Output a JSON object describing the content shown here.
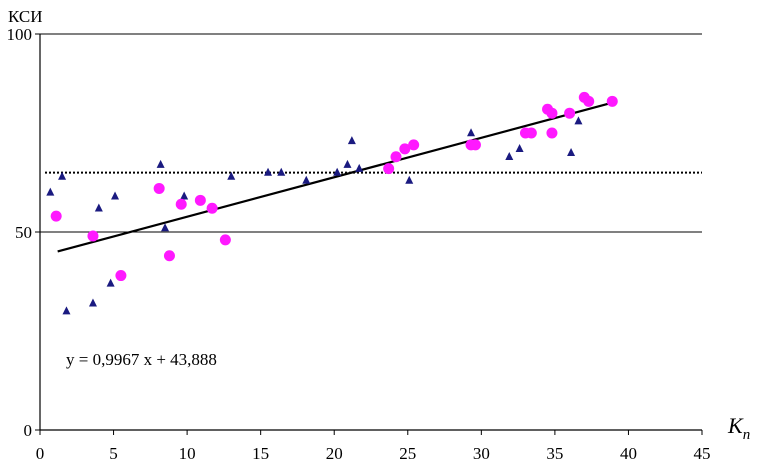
{
  "chart_data": {
    "type": "scatter",
    "title": "",
    "ylabel": "КСИ",
    "xlabel": "K",
    "xlabel_subscript": "n",
    "xlim": [
      0,
      45
    ],
    "ylim": [
      0,
      100
    ],
    "x_ticks": [
      "0",
      "5",
      "10",
      "15",
      "20",
      "25",
      "30",
      "35",
      "40",
      "45"
    ],
    "y_ticks": [
      "0",
      "50",
      "100"
    ],
    "grid": "horizontal lines at 50 and 100",
    "series": [
      {
        "marker": "triangle",
        "color": "#1a1a80",
        "points": [
          [
            0.7,
            60
          ],
          [
            1.5,
            64
          ],
          [
            1.8,
            30
          ],
          [
            3.6,
            32
          ],
          [
            4.0,
            56
          ],
          [
            4.8,
            37
          ],
          [
            5.1,
            59
          ],
          [
            8.2,
            67
          ],
          [
            8.5,
            51
          ],
          [
            9.8,
            59
          ],
          [
            13.0,
            64
          ],
          [
            15.5,
            65
          ],
          [
            16.4,
            65
          ],
          [
            18.1,
            63
          ],
          [
            20.2,
            65
          ],
          [
            20.9,
            67
          ],
          [
            21.2,
            73
          ],
          [
            21.7,
            66
          ],
          [
            25.1,
            63
          ],
          [
            29.3,
            75
          ],
          [
            31.9,
            69
          ],
          [
            32.6,
            71
          ],
          [
            36.1,
            70
          ],
          [
            36.6,
            78
          ]
        ]
      },
      {
        "marker": "circle",
        "color": "#ff19ff",
        "points": [
          [
            1.1,
            54
          ],
          [
            3.6,
            49
          ],
          [
            5.5,
            39
          ],
          [
            8.1,
            61
          ],
          [
            8.8,
            44
          ],
          [
            9.6,
            57
          ],
          [
            10.9,
            58
          ],
          [
            11.7,
            56
          ],
          [
            12.6,
            48
          ],
          [
            23.7,
            66
          ],
          [
            24.2,
            69
          ],
          [
            24.8,
            71
          ],
          [
            25.4,
            72
          ],
          [
            29.3,
            72
          ],
          [
            29.6,
            72
          ],
          [
            33.0,
            75
          ],
          [
            33.4,
            75
          ],
          [
            34.5,
            81
          ],
          [
            34.8,
            80
          ],
          [
            34.8,
            75
          ],
          [
            36.0,
            80
          ],
          [
            37.0,
            84
          ],
          [
            37.3,
            83
          ],
          [
            38.9,
            83
          ]
        ]
      }
    ],
    "trend_line": {
      "equation": "y = 0,9967 x + 43,888",
      "slope": 0.9967,
      "intercept": 43.888,
      "x_range": [
        1.2,
        38.9
      ]
    },
    "reference_line": {
      "y": 65,
      "style": "dotted"
    },
    "colors": {
      "triangle": "#1a1a80",
      "circle": "#ff19ff",
      "axis": "#000000"
    }
  }
}
